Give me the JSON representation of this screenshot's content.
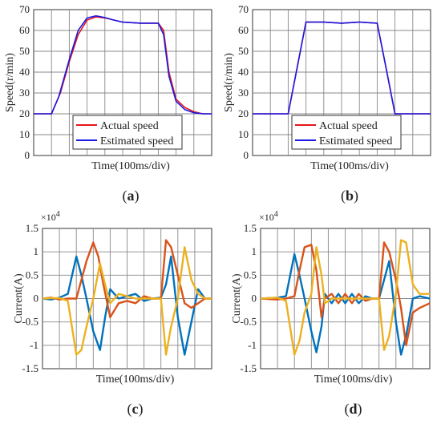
{
  "chart_data": [
    {
      "id": "a",
      "type": "line",
      "caption": "a",
      "xlabel": "Time(100ms/div)",
      "ylabel": "Speed(r/min)",
      "ylim": [
        0,
        70
      ],
      "yticks": [
        0,
        10,
        20,
        30,
        40,
        50,
        60,
        70
      ],
      "xlim": [
        0,
        10
      ],
      "xdivisions": 10,
      "grid": true,
      "legend": "bottom-center",
      "series": [
        {
          "name": "Actual speed",
          "color": "#e8141b",
          "points": [
            [
              0,
              20
            ],
            [
              1,
              20
            ],
            [
              1.5,
              30
            ],
            [
              2,
              45
            ],
            [
              2.5,
              58
            ],
            [
              3,
              65
            ],
            [
              3.5,
              66.5
            ],
            [
              4,
              66
            ],
            [
              4.5,
              65
            ],
            [
              5,
              64
            ],
            [
              6,
              63.5
            ],
            [
              7,
              63.5
            ],
            [
              7.3,
              60
            ],
            [
              7.6,
              40
            ],
            [
              8,
              27
            ],
            [
              8.5,
              23
            ],
            [
              9,
              21
            ],
            [
              9.5,
              20
            ],
            [
              10,
              20
            ]
          ]
        },
        {
          "name": "Estimated speed",
          "color": "#1a1ae6",
          "points": [
            [
              0,
              20
            ],
            [
              1,
              20
            ],
            [
              1.4,
              28
            ],
            [
              2,
              46
            ],
            [
              2.5,
              60
            ],
            [
              3,
              66
            ],
            [
              3.5,
              67
            ],
            [
              4,
              66.2
            ],
            [
              4.5,
              65
            ],
            [
              5,
              64
            ],
            [
              6,
              63.5
            ],
            [
              7,
              63.5
            ],
            [
              7.3,
              58
            ],
            [
              7.6,
              38
            ],
            [
              8,
              26
            ],
            [
              8.5,
              22
            ],
            [
              9,
              20.5
            ],
            [
              9.5,
              20
            ],
            [
              10,
              20
            ]
          ]
        }
      ]
    },
    {
      "id": "b",
      "type": "line",
      "caption": "b",
      "xlabel": "Time(100ms/div)",
      "ylabel": "Speed(r/min)",
      "ylim": [
        0,
        70
      ],
      "yticks": [
        0,
        10,
        20,
        30,
        40,
        50,
        60,
        70
      ],
      "xlim": [
        0,
        10
      ],
      "xdivisions": 10,
      "grid": true,
      "legend": "bottom-center",
      "series": [
        {
          "name": "Actual speed",
          "color": "#e8141b",
          "points": [
            [
              0,
              20
            ],
            [
              2,
              20
            ],
            [
              2.5,
              42
            ],
            [
              3,
              64
            ],
            [
              4,
              64
            ],
            [
              5,
              63.5
            ],
            [
              6,
              64
            ],
            [
              7,
              63.5
            ],
            [
              7.5,
              42
            ],
            [
              8,
              20
            ],
            [
              10,
              20
            ]
          ]
        },
        {
          "name": "Estimated speed",
          "color": "#1a1ae6",
          "points": [
            [
              0,
              20
            ],
            [
              2,
              20
            ],
            [
              2.5,
              42
            ],
            [
              3,
              64
            ],
            [
              4,
              64
            ],
            [
              5,
              63.5
            ],
            [
              6,
              64
            ],
            [
              7,
              63.5
            ],
            [
              7.5,
              42
            ],
            [
              8,
              20
            ],
            [
              10,
              20
            ]
          ]
        }
      ]
    },
    {
      "id": "c",
      "type": "line",
      "caption": "c",
      "xlabel": "Time(100ms/div)",
      "ylabel": "Current(A)",
      "exponent": "×10",
      "exponent_power": "4",
      "ylim": [
        -1.5,
        1.5
      ],
      "yticks": [
        -1.5,
        -1,
        -0.5,
        0,
        0.5,
        1,
        1.5
      ],
      "xlim": [
        0,
        10
      ],
      "xdivisions": 10,
      "grid": true,
      "series": [
        {
          "color": "#0072bd",
          "points": [
            [
              0,
              0
            ],
            [
              0.5,
              -0.02
            ],
            [
              1,
              0.02
            ],
            [
              1.5,
              0.1
            ],
            [
              2,
              0.9
            ],
            [
              2.3,
              0.5
            ],
            [
              2.6,
              0
            ],
            [
              3,
              -0.7
            ],
            [
              3.4,
              -1.1
            ],
            [
              3.7,
              -0.4
            ],
            [
              4,
              0.2
            ],
            [
              4.5,
              0
            ],
            [
              5,
              0.05
            ],
            [
              5.5,
              0.1
            ],
            [
              6,
              -0.05
            ],
            [
              6.5,
              0
            ],
            [
              7,
              0.02
            ],
            [
              7.3,
              0.3
            ],
            [
              7.6,
              0.9
            ],
            [
              8,
              -0.4
            ],
            [
              8.4,
              -1.2
            ],
            [
              8.8,
              -0.5
            ],
            [
              9.2,
              0.2
            ],
            [
              9.6,
              0
            ],
            [
              10,
              0
            ]
          ]
        },
        {
          "color": "#d95319",
          "points": [
            [
              0,
              0
            ],
            [
              0.5,
              0.02
            ],
            [
              1,
              -0.02
            ],
            [
              1.5,
              0
            ],
            [
              2,
              0
            ],
            [
              2.3,
              0.4
            ],
            [
              2.6,
              0.8
            ],
            [
              3,
              1.2
            ],
            [
              3.3,
              0.9
            ],
            [
              3.6,
              0.3
            ],
            [
              4,
              -0.4
            ],
            [
              4.5,
              -0.1
            ],
            [
              5,
              -0.05
            ],
            [
              5.5,
              -0.1
            ],
            [
              6,
              0.05
            ],
            [
              6.5,
              0
            ],
            [
              7,
              0
            ],
            [
              7.3,
              1.25
            ],
            [
              7.6,
              1.1
            ],
            [
              8,
              0.5
            ],
            [
              8.4,
              -0.1
            ],
            [
              8.8,
              -0.2
            ],
            [
              9.2,
              -0.1
            ],
            [
              9.6,
              0
            ],
            [
              10,
              0
            ]
          ]
        },
        {
          "color": "#edb120",
          "points": [
            [
              0,
              0
            ],
            [
              0.5,
              0.01
            ],
            [
              1,
              0.01
            ],
            [
              1.5,
              -0.05
            ],
            [
              2,
              -1.2
            ],
            [
              2.3,
              -1.1
            ],
            [
              2.6,
              -0.6
            ],
            [
              3,
              0
            ],
            [
              3.4,
              0.75
            ],
            [
              3.7,
              0.3
            ],
            [
              4,
              -0.1
            ],
            [
              4.5,
              0.1
            ],
            [
              5,
              0.05
            ],
            [
              5.5,
              0
            ],
            [
              6,
              0
            ],
            [
              6.5,
              0
            ],
            [
              7,
              0
            ],
            [
              7.3,
              -1.2
            ],
            [
              7.6,
              -0.6
            ],
            [
              8,
              0
            ],
            [
              8.4,
              1.1
            ],
            [
              8.8,
              0.4
            ],
            [
              9.2,
              0.1
            ],
            [
              9.6,
              0
            ],
            [
              10,
              0
            ]
          ]
        }
      ]
    },
    {
      "id": "d",
      "type": "line",
      "caption": "d",
      "xlabel": "Time(100ms/div)",
      "ylabel": "Current(A)",
      "exponent": "×10",
      "exponent_power": "4",
      "ylim": [
        -1.5,
        1.5
      ],
      "yticks": [
        -1.5,
        -1,
        -0.5,
        0,
        0.5,
        1,
        1.5
      ],
      "xlim": [
        0,
        10
      ],
      "xdivisions": 10,
      "grid": true,
      "series": [
        {
          "color": "#0072bd",
          "points": [
            [
              0,
              0
            ],
            [
              1,
              0.02
            ],
            [
              1.5,
              0.05
            ],
            [
              2,
              0.95
            ],
            [
              2.3,
              0.5
            ],
            [
              2.6,
              0
            ],
            [
              3,
              -0.7
            ],
            [
              3.3,
              -1.15
            ],
            [
              3.6,
              -0.6
            ],
            [
              3.8,
              0.1
            ],
            [
              4.2,
              -0.1
            ],
            [
              4.6,
              0.1
            ],
            [
              5,
              -0.1
            ],
            [
              5.4,
              0.1
            ],
            [
              5.8,
              -0.1
            ],
            [
              6.2,
              0.05
            ],
            [
              6.6,
              0
            ],
            [
              7,
              0
            ],
            [
              7.3,
              0.4
            ],
            [
              7.6,
              0.8
            ],
            [
              8,
              -0.5
            ],
            [
              8.3,
              -1.2
            ],
            [
              8.6,
              -0.8
            ],
            [
              9,
              0
            ],
            [
              9.4,
              0.05
            ],
            [
              10,
              0
            ]
          ]
        },
        {
          "color": "#d95319",
          "points": [
            [
              0,
              0
            ],
            [
              1,
              -0.02
            ],
            [
              1.5,
              0
            ],
            [
              2,
              0.05
            ],
            [
              2.3,
              0.6
            ],
            [
              2.6,
              1.1
            ],
            [
              3,
              1.15
            ],
            [
              3.3,
              0.6
            ],
            [
              3.6,
              -0.4
            ],
            [
              3.8,
              0
            ],
            [
              4.2,
              0.1
            ],
            [
              4.6,
              -0.1
            ],
            [
              5,
              0.1
            ],
            [
              5.4,
              -0.1
            ],
            [
              5.8,
              0.1
            ],
            [
              6.2,
              -0.05
            ],
            [
              6.6,
              0
            ],
            [
              7,
              0
            ],
            [
              7.3,
              1.2
            ],
            [
              7.6,
              1.0
            ],
            [
              8,
              0.4
            ],
            [
              8.3,
              -0.2
            ],
            [
              8.6,
              -1.0
            ],
            [
              9,
              -0.3
            ],
            [
              9.4,
              -0.2
            ],
            [
              10,
              -0.1
            ]
          ]
        },
        {
          "color": "#edb120",
          "points": [
            [
              0,
              0
            ],
            [
              1,
              0.02
            ],
            [
              1.5,
              -0.05
            ],
            [
              2,
              -1.2
            ],
            [
              2.3,
              -0.9
            ],
            [
              2.6,
              -0.3
            ],
            [
              3,
              0.1
            ],
            [
              3.3,
              1.1
            ],
            [
              3.6,
              0.5
            ],
            [
              3.8,
              -0.1
            ],
            [
              4.2,
              0
            ],
            [
              4.6,
              0
            ],
            [
              5,
              0
            ],
            [
              5.4,
              0
            ],
            [
              5.8,
              0
            ],
            [
              6.2,
              0
            ],
            [
              6.6,
              0
            ],
            [
              7,
              0
            ],
            [
              7.3,
              -1.1
            ],
            [
              7.6,
              -0.8
            ],
            [
              8,
              0.1
            ],
            [
              8.3,
              1.25
            ],
            [
              8.6,
              1.2
            ],
            [
              9,
              0.3
            ],
            [
              9.4,
              0.1
            ],
            [
              10,
              0.1
            ]
          ]
        }
      ]
    }
  ]
}
